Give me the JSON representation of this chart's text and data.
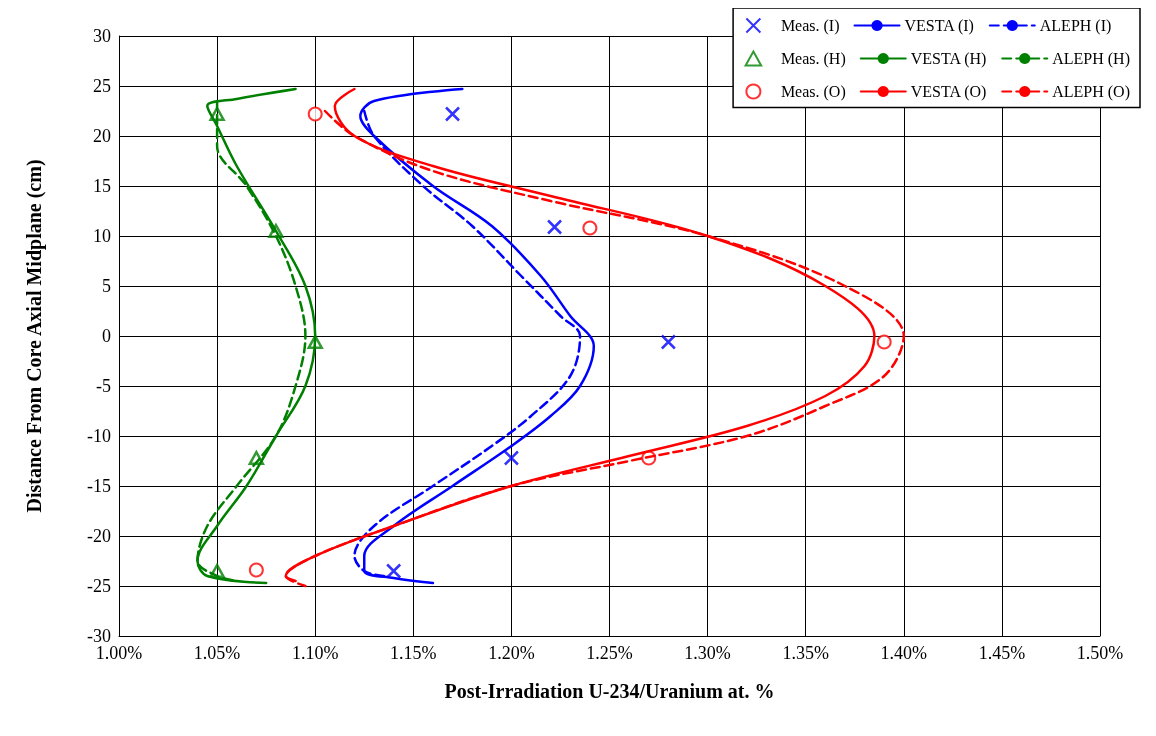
{
  "chart_data": {
    "type": "line",
    "xlabel": "Post-Irradiation U-234/Uranium at. %",
    "ylabel": "Distance From Core Axial Midplane (cm)",
    "xlim": [
      1.0,
      1.5
    ],
    "xticks": [
      {
        "value": 1.0,
        "label": "1.00%"
      },
      {
        "value": 1.05,
        "label": "1.05%"
      },
      {
        "value": 1.1,
        "label": "1.10%"
      },
      {
        "value": 1.15,
        "label": "1.15%"
      },
      {
        "value": 1.2,
        "label": "1.20%"
      },
      {
        "value": 1.25,
        "label": "1.25%"
      },
      {
        "value": 1.3,
        "label": "1.30%"
      },
      {
        "value": 1.35,
        "label": "1.35%"
      },
      {
        "value": 1.4,
        "label": "1.40%"
      },
      {
        "value": 1.45,
        "label": "1.45%"
      },
      {
        "value": 1.5,
        "label": "1.50%"
      }
    ],
    "ylim": [
      -30,
      30
    ],
    "yticks": [
      -30,
      -25,
      -20,
      -15,
      -10,
      -5,
      0,
      5,
      10,
      15,
      20,
      25,
      30
    ],
    "grid": true,
    "legend": "top right",
    "series": [
      {
        "name": "Meas. (I)",
        "type": "scatter",
        "marker": "cross",
        "color": "#0000ff",
        "x": [
          1.17,
          1.222,
          1.28,
          1.2,
          1.14
        ],
        "values": [
          22.2,
          10.9,
          -0.6,
          -12.2,
          -23.5
        ]
      },
      {
        "name": "VESTA (I)",
        "type": "line",
        "marker": "none",
        "line_style": "solid",
        "color": "#0000ff",
        "x": [
          1.175,
          1.13,
          1.123,
          1.13,
          1.16,
          1.19,
          1.215,
          1.23,
          1.242,
          1.235,
          1.22,
          1.2,
          1.17,
          1.14,
          1.125,
          1.125,
          1.14,
          1.16
        ],
        "values": [
          24.7,
          23.5,
          22,
          20,
          15,
          11,
          6,
          2,
          -1,
          -5,
          -8,
          -11,
          -15,
          -19,
          -22,
          -23.5,
          -24.2,
          -24.7
        ]
      },
      {
        "name": "ALEPH (I)",
        "type": "line",
        "marker": "none",
        "line_style": "dashed",
        "color": "#0000ff",
        "x": [
          1.125,
          1.13,
          1.155,
          1.18,
          1.205,
          1.225,
          1.235,
          1.23,
          1.21,
          1.19,
          1.16,
          1.13,
          1.12,
          1.125,
          1.135
        ],
        "values": [
          22.5,
          20,
          15,
          11,
          6,
          2,
          0,
          -4,
          -8,
          -11,
          -15,
          -19,
          -22,
          -23.5,
          -24
        ]
      },
      {
        "name": "Meas. (H)",
        "type": "scatter",
        "marker": "triangle",
        "color": "#008000",
        "x": [
          1.05,
          1.08,
          1.1,
          1.07,
          1.05
        ],
        "values": [
          22.2,
          10.5,
          -0.6,
          -12.2,
          -23.5
        ]
      },
      {
        "name": "VESTA (H)",
        "type": "line",
        "marker": "none",
        "line_style": "solid",
        "color": "#008000",
        "x": [
          1.09,
          1.06,
          1.045,
          1.05,
          1.06,
          1.08,
          1.095,
          1.1,
          1.095,
          1.08,
          1.065,
          1.05,
          1.04,
          1.045,
          1.075
        ],
        "values": [
          24.7,
          23.7,
          23,
          21,
          17,
          10.5,
          5,
          0,
          -5,
          -10,
          -15,
          -19,
          -22.5,
          -24,
          -24.7
        ]
      },
      {
        "name": "ALEPH (H)",
        "type": "line",
        "marker": "none",
        "line_style": "dashed",
        "color": "#008000",
        "x": [
          1.05,
          1.05,
          1.065,
          1.08,
          1.09,
          1.095,
          1.09,
          1.08,
          1.06,
          1.045,
          1.04,
          1.05,
          1.06
        ],
        "values": [
          23.5,
          19,
          15,
          10,
          5,
          0,
          -5,
          -10,
          -15,
          -19,
          -22.5,
          -24,
          -24.5
        ]
      },
      {
        "name": "Meas. (O)",
        "type": "scatter",
        "marker": "circle",
        "color": "#ff0000",
        "x": [
          1.1,
          1.24,
          1.39,
          1.27,
          1.07
        ],
        "values": [
          22.2,
          10.8,
          -0.6,
          -12.2,
          -23.4
        ]
      },
      {
        "name": "VESTA (O)",
        "type": "line",
        "marker": "none",
        "line_style": "solid",
        "color": "#ff0000",
        "x": [
          1.12,
          1.11,
          1.12,
          1.16,
          1.22,
          1.3,
          1.36,
          1.385,
          1.38,
          1.36,
          1.32,
          1.26,
          1.2,
          1.14,
          1.1,
          1.085,
          1.09
        ],
        "values": [
          24.7,
          23,
          20,
          17,
          14,
          10,
          5,
          0,
          -3,
          -6,
          -9,
          -12,
          -15,
          -19,
          -22,
          -24,
          -24.5
        ]
      },
      {
        "name": "ALEPH (O)",
        "type": "line",
        "marker": "none",
        "line_style": "dashed",
        "color": "#ff0000",
        "x": [
          1.105,
          1.12,
          1.16,
          1.22,
          1.3,
          1.37,
          1.4,
          1.39,
          1.36,
          1.32,
          1.26,
          1.2,
          1.14,
          1.1,
          1.085,
          1.095
        ],
        "values": [
          22.5,
          20,
          16.5,
          13.5,
          10,
          5,
          0,
          -4,
          -7,
          -10,
          -12.5,
          -15,
          -19,
          -22,
          -24,
          -25
        ]
      }
    ]
  }
}
